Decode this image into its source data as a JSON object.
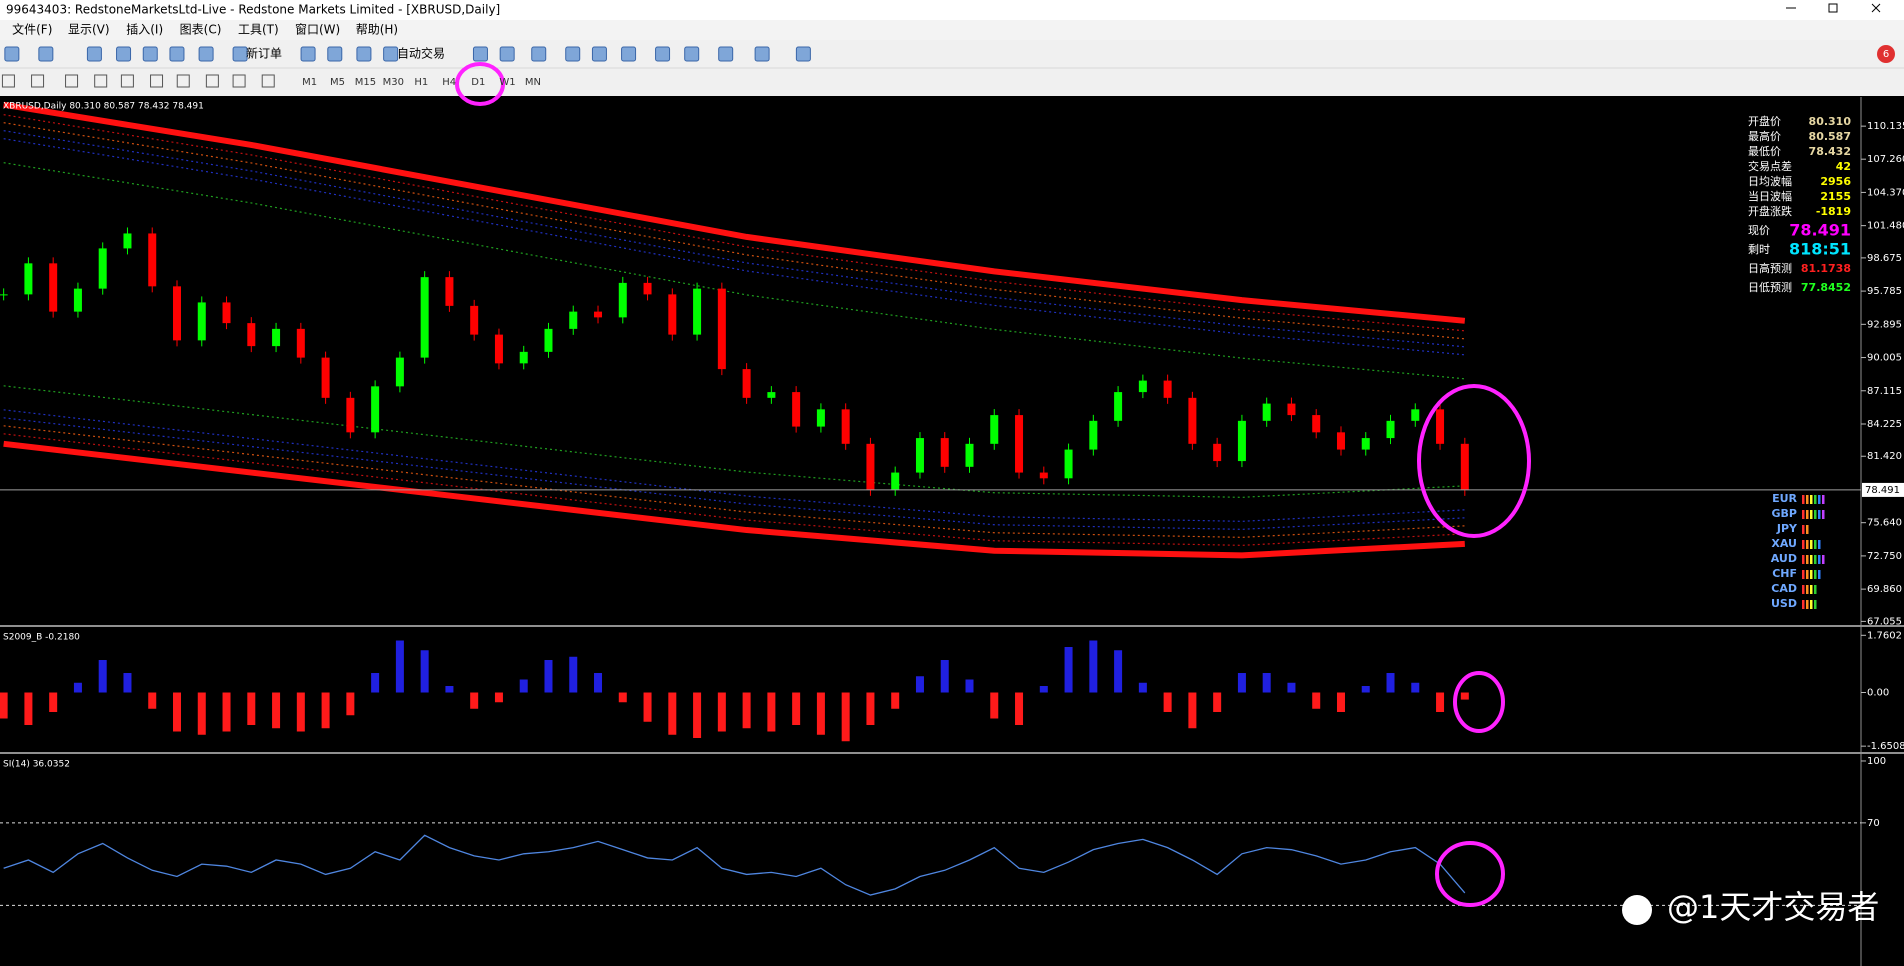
{
  "window": {
    "title": "99643403: RedstoneMarketsLtd-Live - Redstone Markets Limited - [XBRUSD,Daily]"
  },
  "menu": [
    "文件(F)",
    "显示(V)",
    "插入(I)",
    "图表(C)",
    "工具(T)",
    "窗口(W)",
    "帮助(H)"
  ],
  "toolbar": {
    "new_order": "新订单",
    "auto_trade": "自动交易",
    "badge": "6",
    "timeframes": [
      "M1",
      "M5",
      "M15",
      "M30",
      "H1",
      "H4",
      "D1",
      "W1",
      "MN"
    ]
  },
  "chart_data": [
    {
      "type": "candlestick",
      "title": "XBRUSD,Daily 80.310 80.587 78.432 78.491",
      "close": [
        95.5,
        98.2,
        94.0,
        96.0,
        99.5,
        100.8,
        96.2,
        91.5,
        94.8,
        93.0,
        91.0,
        92.5,
        90.0,
        86.5,
        83.5,
        87.5,
        90.0,
        97.0,
        94.5,
        92.0,
        89.5,
        90.5,
        92.5,
        94.0,
        93.5,
        96.5,
        95.5,
        92.0,
        96.0,
        89.0,
        86.5,
        87.0,
        84.0,
        85.5,
        82.5,
        78.5,
        80.0,
        83.0,
        80.5,
        82.5,
        85.0,
        80.0,
        79.5,
        82.0,
        84.5,
        87.0,
        88.0,
        86.5,
        82.5,
        81.0,
        84.5,
        86.0,
        85.0,
        83.5,
        82.0,
        83.0,
        84.5,
        85.5,
        82.5,
        78.491
      ],
      "up_color": "#00ff00",
      "down_color": "#ff0000",
      "ylim": [
        66.74,
        112.67
      ],
      "yticks": [
        110.135,
        {
          "value": 107.26,
          "label": "107.260"
        },
        {
          "value": 104.37,
          "label": "104.370"
        },
        {
          "value": 101.48,
          "label": "101.480"
        },
        98.675,
        95.785,
        92.895,
        90.005,
        87.115,
        84.225,
        {
          "value": 81.42,
          "label": "81.420"
        },
        {
          "value": 75.64,
          "label": "75.640"
        },
        {
          "value": 72.75,
          "label": "72.750"
        },
        {
          "value": 69.86,
          "label": "69.860"
        },
        67.055
      ],
      "current_price": 78.491,
      "bands": {
        "x_index": [
          0,
          10,
          20,
          30,
          40,
          50,
          59
        ],
        "upper": [
          112.0,
          108.5,
          104.5,
          100.5,
          97.5,
          95.0,
          93.2
        ],
        "lower": [
          82.5,
          80.0,
          77.5,
          75.0,
          73.2,
          72.8,
          73.8
        ],
        "color": "#ff1010"
      }
    },
    {
      "type": "bar",
      "title": "S2009_B -0.2180",
      "values": [
        -0.8,
        -1.0,
        -0.6,
        0.3,
        1.0,
        0.6,
        -0.5,
        -1.2,
        -1.3,
        -1.2,
        -1.0,
        -1.1,
        -1.2,
        -1.1,
        -0.7,
        0.6,
        1.6,
        1.3,
        0.2,
        -0.5,
        -0.3,
        0.4,
        1.0,
        1.1,
        0.6,
        -0.3,
        -0.9,
        -1.3,
        -1.4,
        -1.2,
        -1.1,
        -1.2,
        -1.0,
        -1.3,
        -1.5,
        -1.0,
        -0.5,
        0.5,
        1.0,
        0.4,
        -0.8,
        -1.0,
        0.2,
        1.4,
        1.6,
        1.3,
        0.3,
        -0.6,
        -1.1,
        -0.6,
        0.6,
        0.6,
        0.3,
        -0.5,
        -0.6,
        0.2,
        0.6,
        0.3,
        -0.6,
        -0.218
      ],
      "pos_color": "#2020e0",
      "neg_color": "#ff1a1a",
      "ylim": [
        -1.8,
        1.985
      ],
      "yticks": [
        1.7602,
        {
          "value": 0,
          "label": "0.00"
        },
        -1.6508
      ]
    },
    {
      "type": "line",
      "title": "SI(14) 36.0352",
      "values": [
        48,
        52,
        46,
        55,
        60,
        53,
        47,
        44,
        50,
        49,
        46,
        52,
        50,
        45,
        48,
        56,
        52,
        64,
        58,
        54,
        52,
        55,
        56,
        58,
        61,
        57,
        53,
        52,
        58,
        48,
        45,
        46,
        44,
        48,
        40,
        35,
        38,
        44,
        47,
        52,
        58,
        48,
        46,
        51,
        57,
        60,
        62,
        58,
        52,
        45,
        55,
        58,
        57,
        54,
        50,
        52,
        56,
        58,
        50,
        36.0352
      ],
      "color": "#4f86e0",
      "ylim": [
        0.6,
        102.9
      ],
      "yticks": [
        100,
        70
      ],
      "levels": [
        70,
        30
      ]
    }
  ],
  "info_panel": [
    {
      "label": "开盘价",
      "value": "80.310",
      "color": "#e6d7a3"
    },
    {
      "label": "最高价",
      "value": "80.587",
      "color": "#e6d7a3"
    },
    {
      "label": "最低价",
      "value": "78.432",
      "color": "#e6d7a3"
    },
    {
      "label": "交易点差",
      "value": "42",
      "color": "#ffff00"
    },
    {
      "label": "日均波幅",
      "value": "2956",
      "color": "#ffff00"
    },
    {
      "label": "当日波幅",
      "value": "2155",
      "color": "#ffff00"
    },
    {
      "label": "开盘涨跌",
      "value": "-1819",
      "color": "#ffff00"
    },
    {
      "label": "现价",
      "value": "78.491",
      "color": "#ff00ff"
    },
    {
      "label": "剩时",
      "value": "818:51",
      "color": "#00e5ff"
    },
    {
      "label": "日高预测",
      "value": "81.1738",
      "color": "#ff2020"
    },
    {
      "label": "日低预测",
      "value": "77.8452",
      "color": "#20ff20"
    }
  ],
  "currencies": [
    {
      "name": "EUR",
      "strength": 6
    },
    {
      "name": "GBP",
      "strength": 6
    },
    {
      "name": "JPY",
      "strength": 2
    },
    {
      "name": "XAU",
      "strength": 5
    },
    {
      "name": "AUD",
      "strength": 6
    },
    {
      "name": "CHF",
      "strength": 5
    },
    {
      "name": "CAD",
      "strength": 4
    },
    {
      "name": "USD",
      "strength": 4
    }
  ],
  "watermark": "@1天才交易者"
}
